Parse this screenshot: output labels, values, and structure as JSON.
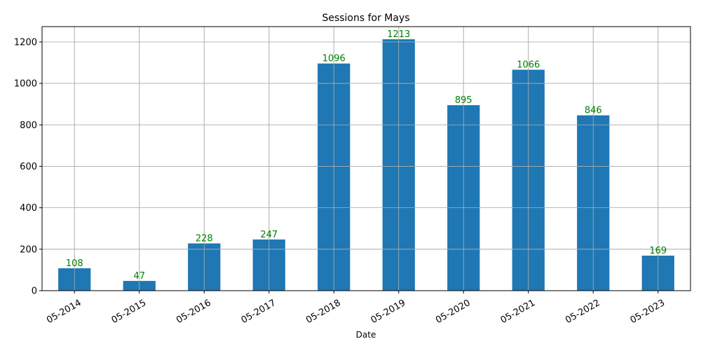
{
  "chart_data": {
    "type": "bar",
    "title": "Sessions for Mays",
    "xlabel": "Date",
    "ylabel": "",
    "categories": [
      "05-2014",
      "05-2015",
      "05-2016",
      "05-2017",
      "05-2018",
      "05-2019",
      "05-2020",
      "05-2021",
      "05-2022",
      "05-2023"
    ],
    "values": [
      108,
      47,
      228,
      247,
      1096,
      1213,
      895,
      1066,
      846,
      169
    ],
    "ylim": [
      0,
      1274
    ],
    "yticks": [
      0,
      200,
      400,
      600,
      800,
      1000,
      1200
    ],
    "grid": true,
    "legend": "none",
    "colors": {
      "bar": "#1f77b4",
      "data_label": "#008000",
      "grid": "#b0b0b0",
      "axis": "#000000"
    }
  }
}
